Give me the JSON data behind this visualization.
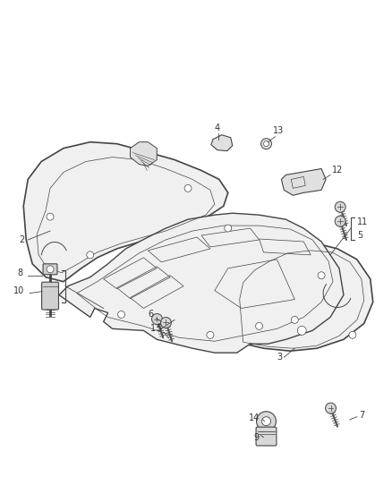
{
  "bg_color": "#ffffff",
  "fig_w": 4.38,
  "fig_h": 5.33,
  "line_color": "#444444",
  "fill_light": "#f0f0f0",
  "fill_mid": "#e0e0e0",
  "label_fontsize": 7.0,
  "label_color": "#333333"
}
